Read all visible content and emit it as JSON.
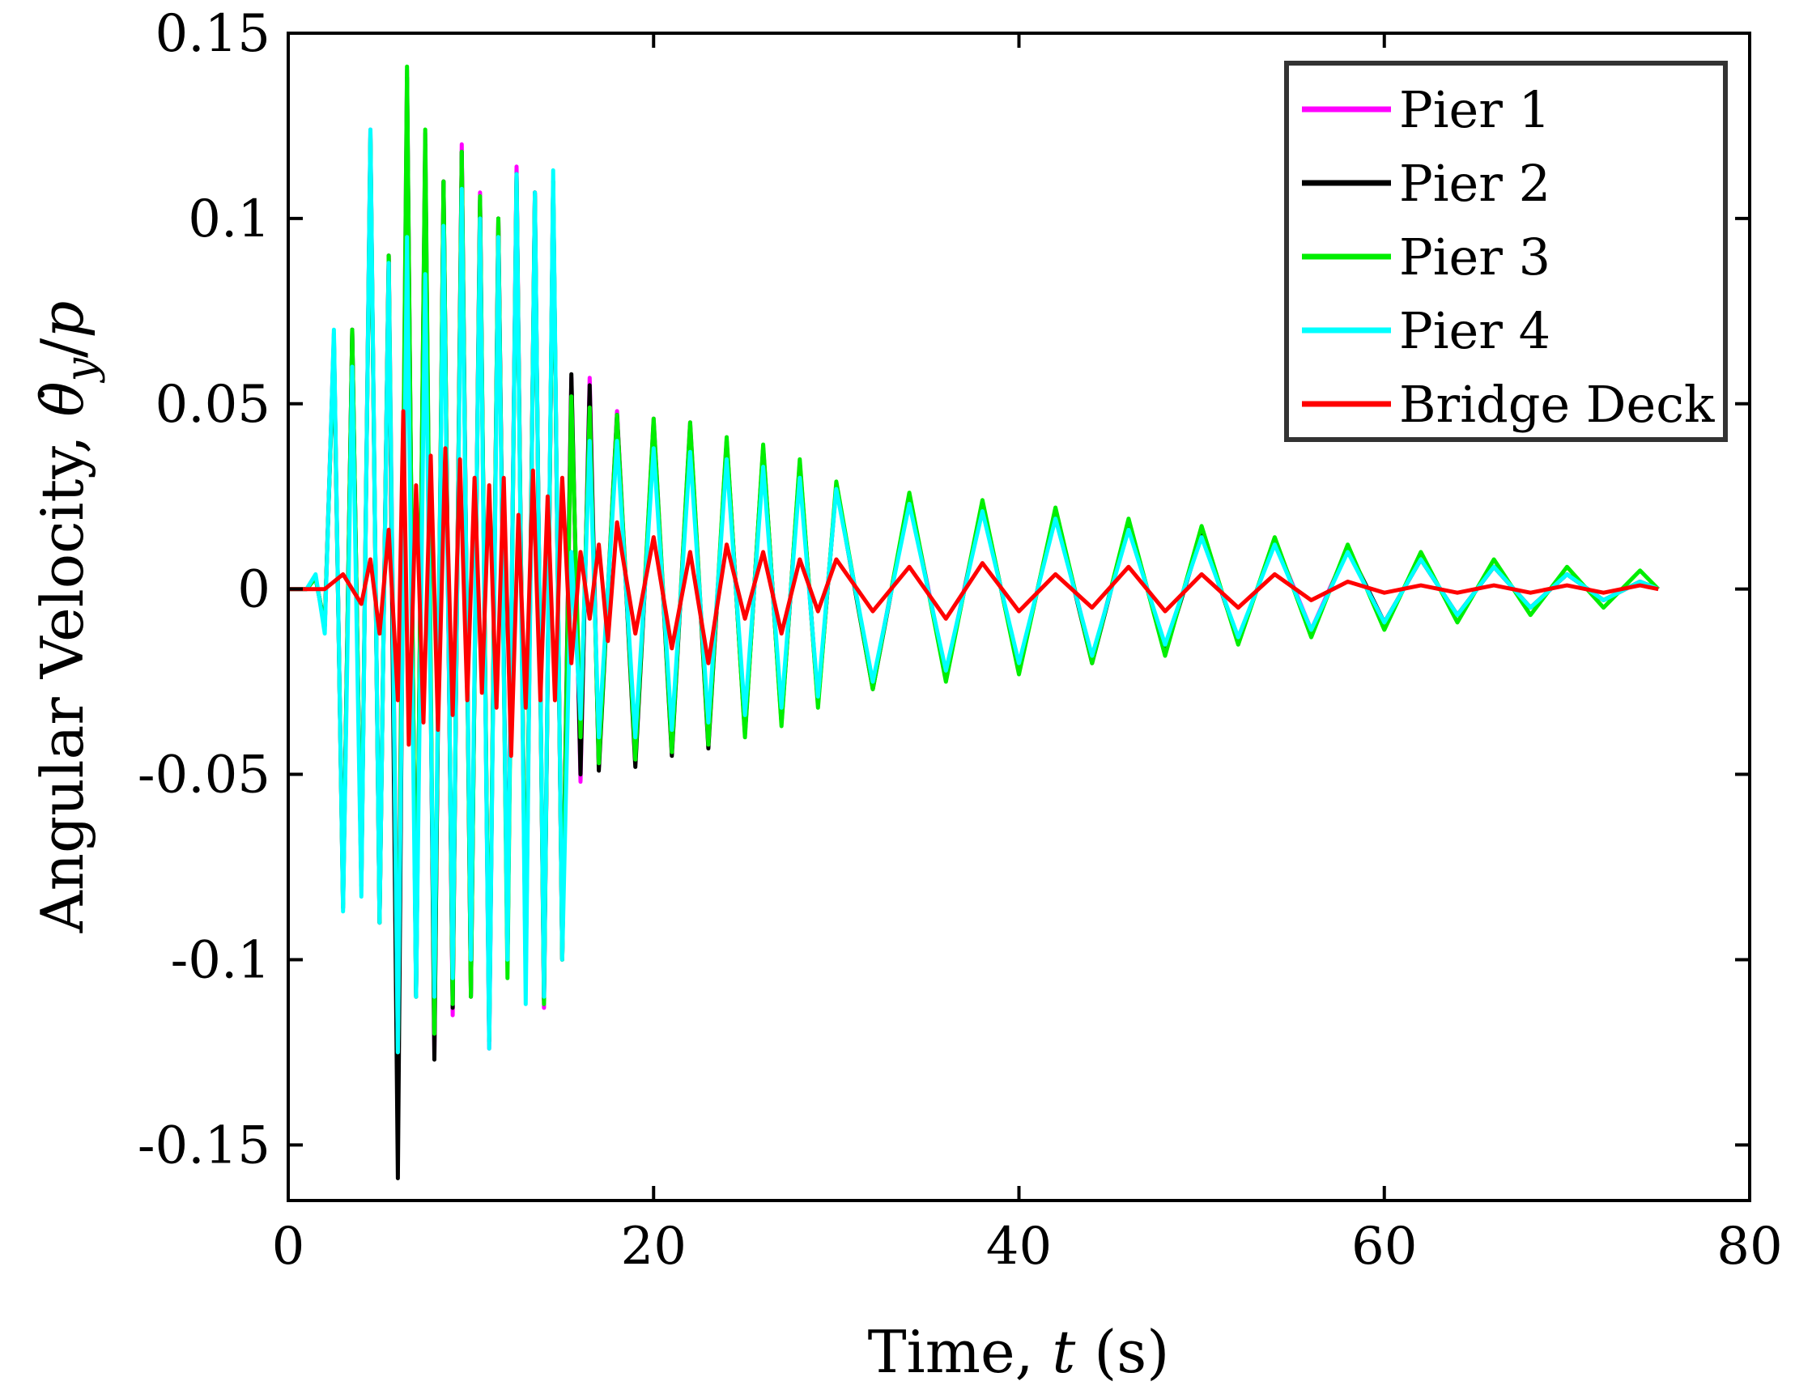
{
  "chart_data": {
    "type": "line",
    "title": "",
    "xlabel_parts": [
      "Time, ",
      "t",
      " (s)"
    ],
    "ylabel_parts": [
      "Angular Velocity, ",
      "θ̇",
      "y",
      "/",
      "p"
    ],
    "xlim": [
      0,
      80
    ],
    "ylim": [
      -0.165,
      0.15
    ],
    "x_ticks": [
      0,
      20,
      40,
      60,
      80
    ],
    "y_ticks": [
      -0.15,
      -0.1,
      -0.05,
      0,
      0.05,
      0.1,
      0.15
    ],
    "x_tick_labels": [
      "0",
      "20",
      "40",
      "60",
      "80"
    ],
    "y_tick_labels": [
      "-0.15",
      "-0.1",
      "-0.05",
      "0",
      "0.05",
      "0.1",
      "0.15"
    ],
    "grid": false,
    "legend_position": "top-right",
    "series": [
      {
        "name": "Pier 1",
        "color": "#ff00ff",
        "t": [
          0,
          1,
          1.5,
          2,
          2.5,
          3,
          3.5,
          4,
          4.5,
          5,
          5.5,
          6,
          6.5,
          7,
          7.5,
          8,
          8.5,
          9,
          9.5,
          10,
          10.5,
          11,
          11.5,
          12,
          12.5,
          13,
          13.5,
          14,
          14.5,
          15,
          15.5,
          16,
          16.5,
          17,
          18,
          19,
          20,
          21,
          22,
          23,
          24,
          25,
          26,
          27,
          28,
          29,
          30,
          32,
          34,
          36,
          38,
          40,
          42,
          44,
          46,
          48,
          50,
          52,
          54,
          56,
          58,
          60,
          62,
          64,
          66,
          68,
          70,
          72,
          74,
          75
        ],
        "values": [
          0,
          0,
          0.003,
          -0.01,
          0.069,
          -0.086,
          0.07,
          -0.08,
          0.124,
          -0.09,
          0.09,
          -0.12,
          0.14,
          -0.11,
          0.123,
          -0.126,
          0.11,
          -0.115,
          0.12,
          -0.11,
          0.107,
          -0.124,
          0.1,
          -0.1,
          0.114,
          -0.105,
          0.107,
          -0.113,
          0.11,
          -0.1,
          0.057,
          -0.052,
          0.057,
          -0.048,
          0.048,
          -0.047,
          0.046,
          -0.044,
          0.045,
          -0.042,
          0.04,
          -0.039,
          0.038,
          -0.036,
          0.033,
          -0.031,
          0.028,
          -0.026,
          0.025,
          -0.023,
          0.023,
          -0.022,
          0.021,
          -0.019,
          0.018,
          -0.017,
          0.015,
          -0.014,
          0.013,
          -0.011,
          0.011,
          -0.009,
          0.008,
          -0.007,
          0.006,
          -0.005,
          0.004,
          -0.003,
          0.002,
          0
        ]
      },
      {
        "name": "Pier 2",
        "color": "#000000",
        "t": [
          0,
          1,
          1.5,
          2,
          2.5,
          3,
          3.5,
          4,
          4.5,
          5,
          5.5,
          6,
          6.5,
          7,
          7.5,
          8,
          8.5,
          9,
          9.5,
          10,
          10.5,
          11,
          11.5,
          12,
          12.5,
          13,
          13.5,
          14,
          14.5,
          15,
          15.5,
          16,
          16.5,
          17,
          18,
          19,
          20,
          21,
          22,
          23,
          24,
          25,
          26,
          27,
          28,
          29,
          30,
          32,
          34,
          36,
          38,
          40,
          42,
          44,
          46,
          48,
          50,
          52,
          54,
          56,
          58,
          60,
          62,
          64,
          66,
          68,
          70,
          72,
          74,
          75
        ],
        "values": [
          0,
          0,
          0.003,
          -0.01,
          0.067,
          -0.085,
          0.07,
          -0.08,
          0.122,
          -0.09,
          0.09,
          -0.159,
          0.138,
          -0.11,
          0.12,
          -0.127,
          0.11,
          -0.113,
          0.118,
          -0.11,
          0.105,
          -0.122,
          0.1,
          -0.1,
          0.112,
          -0.105,
          0.107,
          -0.111,
          0.11,
          -0.1,
          0.058,
          -0.05,
          0.055,
          -0.049,
          0.047,
          -0.048,
          0.045,
          -0.045,
          0.044,
          -0.043,
          0.04,
          -0.039,
          0.038,
          -0.036,
          0.034,
          -0.031,
          0.028,
          -0.027,
          0.025,
          -0.024,
          0.023,
          -0.022,
          0.021,
          -0.02,
          0.018,
          -0.017,
          0.015,
          -0.014,
          0.013,
          -0.012,
          0.011,
          -0.009,
          0.008,
          -0.007,
          0.006,
          -0.005,
          0.004,
          -0.003,
          0.002,
          0
        ]
      },
      {
        "name": "Pier 3",
        "color": "#00ee00",
        "t": [
          0,
          1,
          1.5,
          2,
          2.5,
          3,
          3.5,
          4,
          4.5,
          5,
          5.5,
          6,
          6.5,
          7,
          7.5,
          8,
          8.5,
          9,
          9.5,
          10,
          10.5,
          11,
          11.5,
          12,
          12.5,
          13,
          13.5,
          14,
          14.5,
          15,
          15.5,
          16,
          16.5,
          17,
          18,
          19,
          20,
          21,
          22,
          23,
          24,
          25,
          26,
          27,
          28,
          29,
          30,
          32,
          34,
          36,
          38,
          40,
          42,
          44,
          46,
          48,
          50,
          52,
          54,
          56,
          58,
          60,
          62,
          64,
          66,
          68,
          70,
          72,
          74,
          75
        ],
        "values": [
          0,
          0,
          0.003,
          -0.01,
          0.068,
          -0.086,
          0.07,
          -0.08,
          0.123,
          -0.09,
          0.09,
          -0.125,
          0.141,
          -0.11,
          0.124,
          -0.12,
          0.11,
          -0.112,
          0.118,
          -0.11,
          0.106,
          -0.121,
          0.1,
          -0.105,
          0.112,
          -0.104,
          0.106,
          -0.112,
          0.11,
          -0.1,
          0.052,
          -0.04,
          0.049,
          -0.047,
          0.047,
          -0.046,
          0.046,
          -0.044,
          0.045,
          -0.042,
          0.041,
          -0.04,
          0.039,
          -0.037,
          0.035,
          -0.032,
          0.029,
          -0.027,
          0.026,
          -0.025,
          0.024,
          -0.023,
          0.022,
          -0.02,
          0.019,
          -0.018,
          0.017,
          -0.015,
          0.014,
          -0.013,
          0.012,
          -0.011,
          0.01,
          -0.009,
          0.008,
          -0.007,
          0.006,
          -0.005,
          0.005,
          0
        ]
      },
      {
        "name": "Pier 4",
        "color": "#00ffff",
        "t": [
          0,
          1,
          1.5,
          2,
          2.5,
          3,
          3.5,
          4,
          4.5,
          5,
          5.5,
          6,
          6.5,
          7,
          7.5,
          8,
          8.5,
          9,
          9.5,
          10,
          10.5,
          11,
          11.5,
          12,
          12.5,
          13,
          13.5,
          14,
          14.5,
          15,
          15.5,
          16,
          16.5,
          17,
          18,
          19,
          20,
          21,
          22,
          23,
          24,
          25,
          26,
          27,
          28,
          29,
          30,
          32,
          34,
          36,
          38,
          40,
          42,
          44,
          46,
          48,
          50,
          52,
          54,
          56,
          58,
          60,
          62,
          64,
          66,
          68,
          70,
          72,
          74,
          75
        ],
        "values": [
          0,
          0,
          0.004,
          -0.012,
          0.07,
          -0.087,
          0.06,
          -0.083,
          0.124,
          -0.09,
          0.088,
          -0.125,
          0.095,
          -0.11,
          0.085,
          -0.11,
          0.098,
          -0.105,
          0.108,
          -0.1,
          0.1,
          -0.124,
          0.095,
          -0.1,
          0.112,
          -0.112,
          0.107,
          -0.11,
          0.113,
          -0.1,
          0.01,
          -0.035,
          0.04,
          -0.04,
          0.04,
          -0.04,
          0.038,
          -0.038,
          0.037,
          -0.036,
          0.035,
          -0.034,
          0.033,
          -0.032,
          0.03,
          -0.029,
          0.027,
          -0.025,
          0.023,
          -0.022,
          0.021,
          -0.02,
          0.019,
          -0.018,
          0.016,
          -0.015,
          0.014,
          -0.013,
          0.012,
          -0.011,
          0.01,
          -0.009,
          0.008,
          -0.007,
          0.006,
          -0.005,
          0.004,
          -0.003,
          0.002,
          0
        ]
      },
      {
        "name": "Bridge Deck",
        "color": "#ff0000",
        "t": [
          0,
          2,
          3,
          4,
          4.5,
          5,
          5.5,
          6,
          6.3,
          6.6,
          7,
          7.4,
          7.8,
          8.2,
          8.6,
          9,
          9.4,
          9.8,
          10.2,
          10.6,
          11,
          11.4,
          11.8,
          12.2,
          12.6,
          13,
          13.4,
          13.8,
          14.2,
          14.6,
          15,
          15.5,
          16,
          16.5,
          17,
          17.5,
          18,
          19,
          20,
          21,
          22,
          23,
          24,
          25,
          26,
          27,
          28,
          29,
          30,
          32,
          34,
          36,
          38,
          40,
          42,
          44,
          46,
          48,
          50,
          52,
          54,
          56,
          58,
          60,
          62,
          64,
          66,
          68,
          70,
          72,
          74,
          75
        ],
        "values": [
          0,
          0,
          0.004,
          -0.004,
          0.008,
          -0.012,
          0.016,
          -0.03,
          0.048,
          -0.042,
          0.028,
          -0.036,
          0.036,
          -0.038,
          0.038,
          -0.034,
          0.035,
          -0.03,
          0.03,
          -0.028,
          0.028,
          -0.032,
          0.03,
          -0.045,
          0.02,
          -0.032,
          0.032,
          -0.03,
          0.025,
          -0.03,
          0.03,
          -0.02,
          0.01,
          -0.008,
          0.012,
          -0.014,
          0.018,
          -0.012,
          0.014,
          -0.016,
          0.01,
          -0.02,
          0.012,
          -0.008,
          0.01,
          -0.012,
          0.008,
          -0.006,
          0.008,
          -0.006,
          0.006,
          -0.008,
          0.007,
          -0.006,
          0.004,
          -0.005,
          0.006,
          -0.006,
          0.004,
          -0.005,
          0.004,
          -0.003,
          0.002,
          -0.001,
          0.001,
          -0.001,
          0.001,
          -0.001,
          0.001,
          -0.001,
          0.001,
          0
        ]
      }
    ]
  }
}
